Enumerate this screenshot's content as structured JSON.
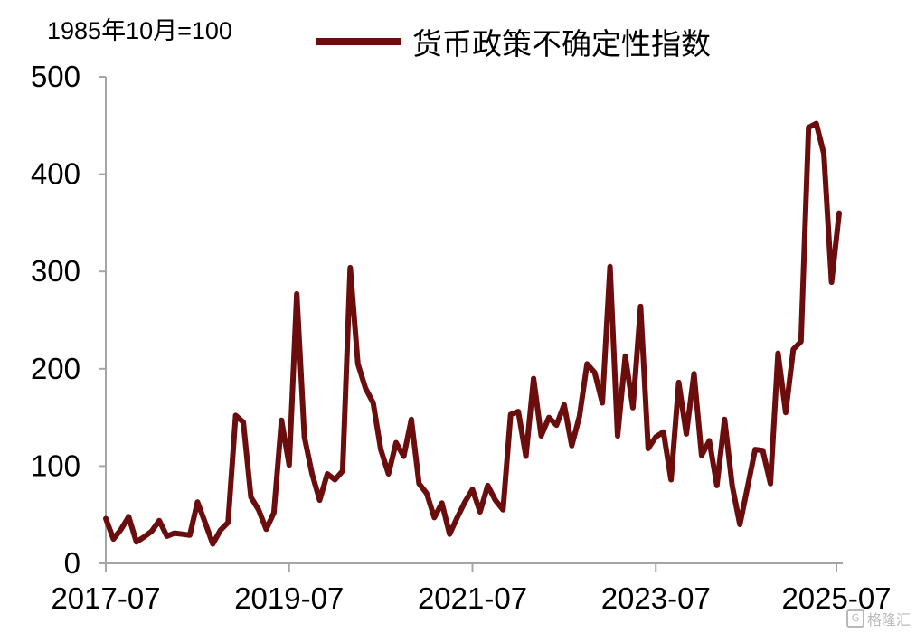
{
  "chart_data": {
    "type": "line",
    "unit_note": "1985年10月=100",
    "series_name": "货币政策不确定性指数",
    "series_color": "#6b0d0d",
    "ylim": [
      0,
      500
    ],
    "yticks": [
      0,
      100,
      200,
      300,
      400,
      500
    ],
    "x_tick_labels": [
      "2017-07",
      "2019-07",
      "2021-07",
      "2023-07",
      "2025-07"
    ],
    "x_start": "2017-07",
    "values": [
      46,
      25,
      35,
      48,
      22,
      27,
      33,
      44,
      28,
      31,
      30,
      29,
      63,
      42,
      20,
      34,
      42,
      152,
      145,
      68,
      55,
      35,
      52,
      147,
      101,
      277,
      130,
      92,
      65,
      92,
      86,
      95,
      304,
      205,
      180,
      165,
      117,
      92,
      124,
      110,
      148,
      82,
      72,
      47,
      62,
      30,
      47,
      63,
      76,
      53,
      80,
      65,
      55,
      153,
      156,
      110,
      190,
      131,
      150,
      142,
      163,
      121,
      151,
      205,
      196,
      165,
      305,
      131,
      213,
      160,
      264,
      118,
      130,
      135,
      86,
      186,
      133,
      195,
      111,
      126,
      80,
      148,
      80,
      40,
      78,
      117,
      116,
      82,
      216,
      155,
      220,
      228,
      448,
      452,
      421,
      289,
      360
    ]
  },
  "watermark": {
    "icon": "gelonghui-logo-icon",
    "text": "格隆汇"
  }
}
